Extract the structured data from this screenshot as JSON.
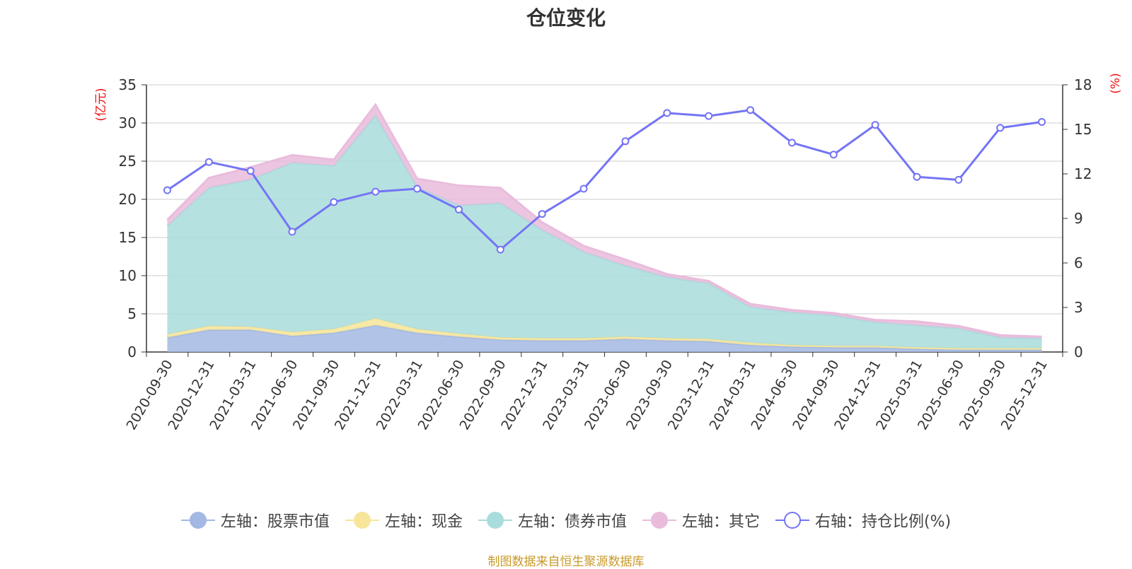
{
  "chart_data": {
    "type": "area",
    "title": "仓位变化",
    "source": "制图数据来自恒生聚源数据库",
    "categories": [
      "2020-09-30",
      "2020-12-31",
      "2021-03-31",
      "2021-06-30",
      "2021-09-30",
      "2021-12-31",
      "2022-03-31",
      "2022-06-30",
      "2022-09-30",
      "2022-12-31",
      "2023-03-31",
      "2023-06-30",
      "2023-09-30",
      "2023-12-31",
      "2024-03-31",
      "2024-06-30",
      "2024-09-30",
      "2024-12-31",
      "2025-03-31",
      "2025-06-30",
      "2025-09-30",
      "2025-12-31"
    ],
    "left_axis": {
      "label": "(亿元)",
      "ylim": [
        0,
        35
      ],
      "ticks": [
        0,
        5,
        10,
        15,
        20,
        25,
        30,
        35
      ]
    },
    "right_axis": {
      "label": "(%)",
      "ylim": [
        0,
        18
      ],
      "ticks": [
        0,
        3,
        6,
        9,
        12,
        15,
        18
      ]
    },
    "series": [
      {
        "name": "左轴：股票市值",
        "axis": "left",
        "stacked": true,
        "color": "#a3b8e3",
        "values": [
          1.9,
          2.9,
          2.9,
          2.1,
          2.5,
          3.5,
          2.5,
          2.0,
          1.6,
          1.5,
          1.5,
          1.7,
          1.5,
          1.4,
          0.9,
          0.7,
          0.6,
          0.6,
          0.4,
          0.3,
          0.3,
          0.3
        ]
      },
      {
        "name": "左轴：现金",
        "axis": "left",
        "stacked": true,
        "color": "#f7e59a",
        "values": [
          0.4,
          0.5,
          0.4,
          0.5,
          0.5,
          0.9,
          0.5,
          0.4,
          0.3,
          0.3,
          0.3,
          0.3,
          0.3,
          0.3,
          0.3,
          0.2,
          0.2,
          0.2,
          0.2,
          0.2,
          0.2,
          0.2
        ]
      },
      {
        "name": "左轴：债券市值",
        "axis": "left",
        "stacked": true,
        "color": "#a9dcdc",
        "values": [
          14.2,
          18.1,
          19.3,
          22.2,
          21.4,
          26.6,
          18.6,
          16.8,
          17.6,
          14.2,
          11.3,
          9.3,
          8.0,
          7.3,
          4.7,
          4.3,
          4.0,
          3.1,
          2.9,
          2.6,
          1.4,
          1.3
        ]
      },
      {
        "name": "左轴：其它",
        "axis": "left",
        "stacked": true,
        "color": "#e9bcdc",
        "values": [
          0.8,
          1.3,
          1.6,
          1.0,
          0.8,
          1.4,
          1.1,
          2.6,
          2.0,
          1.0,
          0.8,
          0.8,
          0.4,
          0.3,
          0.4,
          0.3,
          0.3,
          0.3,
          0.5,
          0.3,
          0.3,
          0.2
        ]
      },
      {
        "name": "右轴：持仓比例(%)",
        "axis": "right",
        "type": "line",
        "color": "#7474f5",
        "values": [
          10.9,
          12.8,
          12.2,
          8.1,
          10.1,
          10.8,
          11.0,
          9.6,
          6.9,
          9.3,
          11.0,
          14.2,
          16.1,
          15.9,
          16.3,
          14.1,
          13.3,
          15.3,
          11.8,
          11.6,
          15.1,
          15.5
        ]
      }
    ]
  }
}
